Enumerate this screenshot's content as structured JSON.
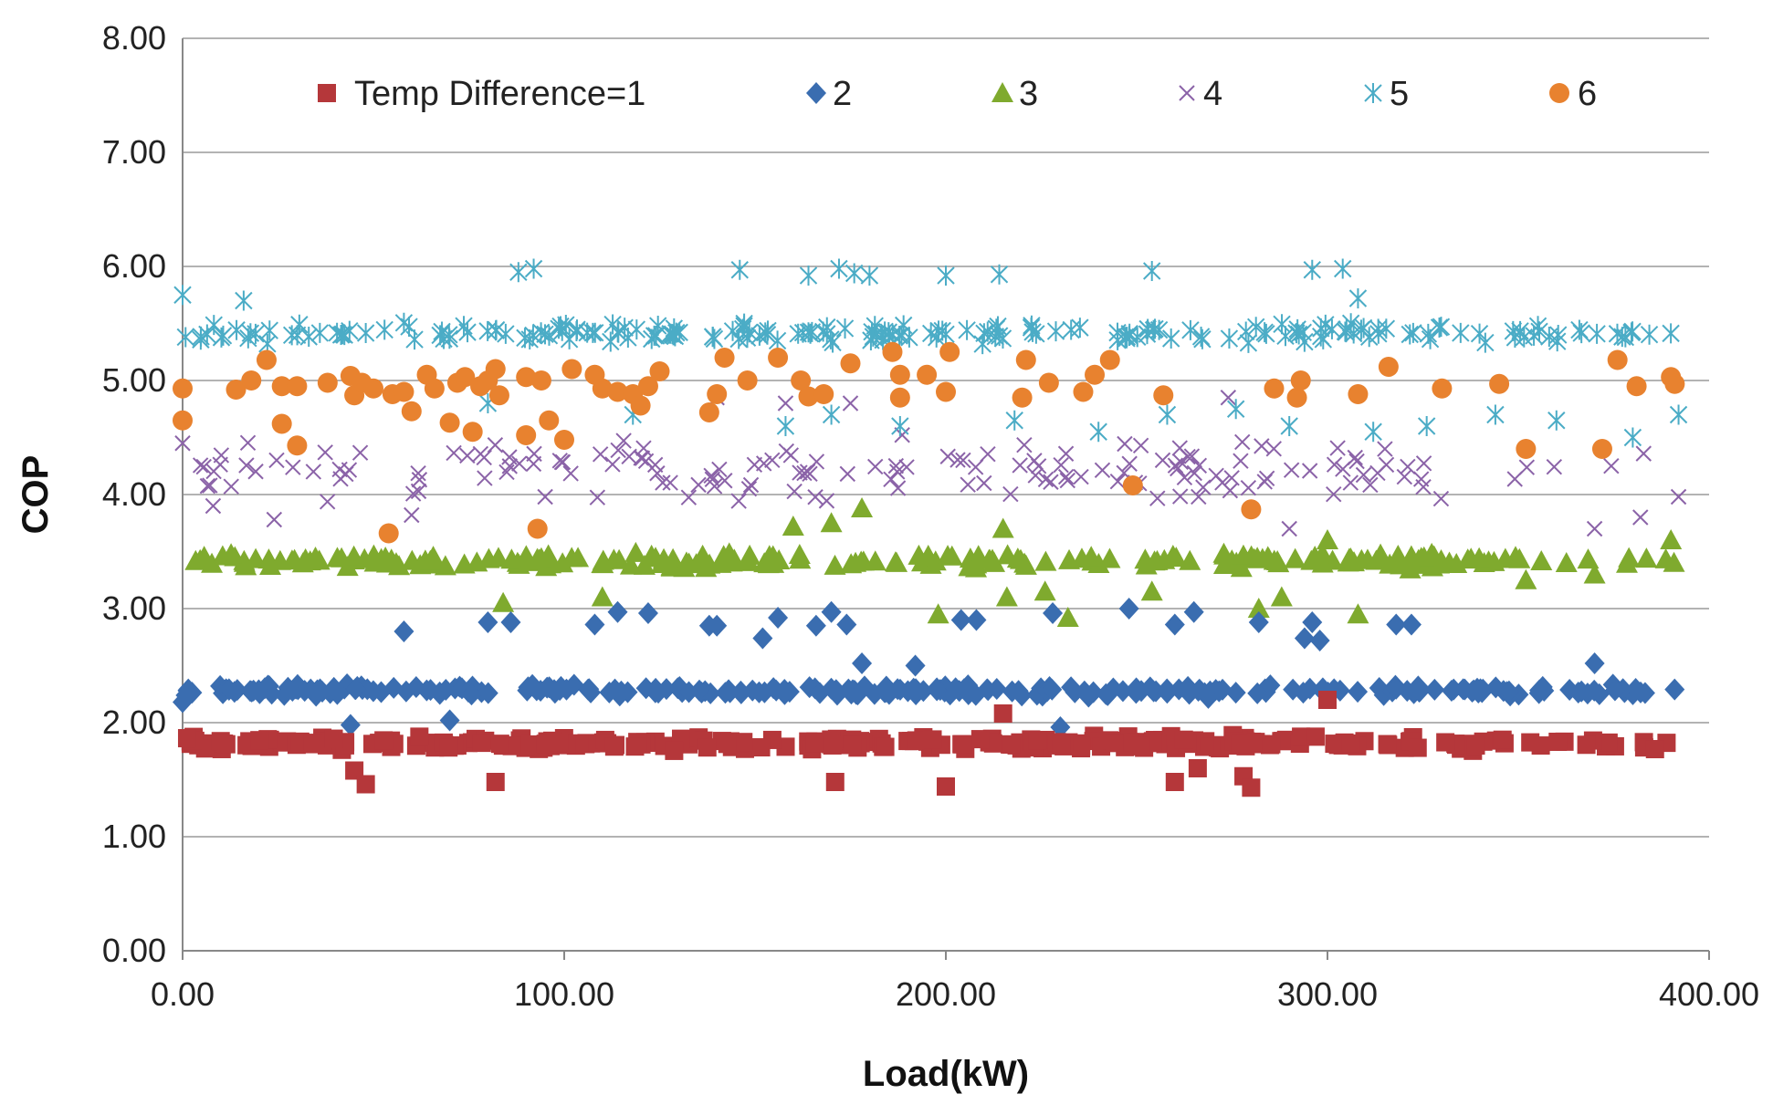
{
  "chart_data": {
    "type": "scatter",
    "title": "",
    "xlabel": "Load(kW)",
    "ylabel": "COP",
    "xlim": [
      0,
      400
    ],
    "ylim": [
      0,
      8
    ],
    "xticks": [
      0,
      100,
      200,
      300,
      400
    ],
    "yticks": [
      0,
      1,
      2,
      3,
      4,
      5,
      6,
      7,
      8
    ],
    "xtick_labels": [
      "0.00",
      "100.00",
      "200.00",
      "300.00",
      "400.00"
    ],
    "ytick_labels": [
      "0.00",
      "1.00",
      "2.00",
      "3.00",
      "4.00",
      "5.00",
      "6.00",
      "7.00",
      "8.00"
    ],
    "grid": "horizontal",
    "legend_position": "top",
    "series": [
      {
        "name": "Temp Difference=1",
        "marker": "square",
        "color": "#B5373A",
        "base": 1.82,
        "spread": 0.08,
        "count": 300,
        "outliers": [
          [
            45,
            1.58
          ],
          [
            48,
            1.46
          ],
          [
            82,
            1.48
          ],
          [
            171,
            1.48
          ],
          [
            200,
            1.44
          ],
          [
            260,
            1.48
          ],
          [
            278,
            1.53
          ],
          [
            280,
            1.43
          ],
          [
            266,
            1.6
          ],
          [
            300,
            2.2
          ],
          [
            215,
            2.08
          ]
        ]
      },
      {
        "name": "2",
        "marker": "diamond",
        "color": "#3A6DB0",
        "base": 2.28,
        "spread": 0.07,
        "count": 280,
        "outliers": [
          [
            58,
            2.8
          ],
          [
            80,
            2.88
          ],
          [
            86,
            2.88
          ],
          [
            108,
            2.86
          ],
          [
            114,
            2.97
          ],
          [
            122,
            2.96
          ],
          [
            138,
            2.85
          ],
          [
            140,
            2.85
          ],
          [
            152,
            2.74
          ],
          [
            156,
            2.92
          ],
          [
            166,
            2.85
          ],
          [
            170,
            2.97
          ],
          [
            174,
            2.86
          ],
          [
            178,
            2.52
          ],
          [
            192,
            2.5
          ],
          [
            204,
            2.9
          ],
          [
            208,
            2.9
          ],
          [
            228,
            2.96
          ],
          [
            248,
            3.0
          ],
          [
            260,
            2.86
          ],
          [
            265,
            2.97
          ],
          [
            282,
            2.88
          ],
          [
            294,
            2.74
          ],
          [
            296,
            2.88
          ],
          [
            298,
            2.72
          ],
          [
            318,
            2.86
          ],
          [
            322,
            2.86
          ],
          [
            370,
            2.52
          ],
          [
            230,
            1.96
          ],
          [
            44,
            1.98
          ],
          [
            70,
            2.02
          ],
          [
            0,
            2.18
          ]
        ]
      },
      {
        "name": "3",
        "marker": "triangle",
        "color": "#7FAA2E",
        "base": 3.42,
        "spread": 0.09,
        "count": 240,
        "outliers": [
          [
            84,
            3.05
          ],
          [
            110,
            3.1
          ],
          [
            160,
            3.72
          ],
          [
            170,
            3.75
          ],
          [
            178,
            3.88
          ],
          [
            198,
            2.95
          ],
          [
            215,
            3.7
          ],
          [
            216,
            3.1
          ],
          [
            226,
            3.15
          ],
          [
            232,
            2.92
          ],
          [
            254,
            3.15
          ],
          [
            282,
            3.0
          ],
          [
            288,
            3.1
          ],
          [
            300,
            3.6
          ],
          [
            308,
            2.95
          ],
          [
            352,
            3.25
          ],
          [
            370,
            3.3
          ],
          [
            390,
            3.6
          ]
        ]
      },
      {
        "name": "4",
        "marker": "x",
        "color": "#8B63A8",
        "base": 4.2,
        "spread": 0.35,
        "count": 170,
        "xfrom": 0,
        "xto": 392,
        "outliers": [
          [
            0,
            4.45
          ],
          [
            8,
            3.9
          ],
          [
            24,
            3.78
          ],
          [
            60,
            3.82
          ],
          [
            95,
            3.98
          ],
          [
            140,
            4.85
          ],
          [
            158,
            4.8
          ],
          [
            175,
            4.8
          ],
          [
            210,
            4.1
          ],
          [
            274,
            4.85
          ],
          [
            290,
            3.7
          ],
          [
            370,
            3.7
          ],
          [
            382,
            3.8
          ],
          [
            392,
            3.98
          ]
        ]
      },
      {
        "name": "5",
        "marker": "asterisk",
        "color": "#4BACC6",
        "base": 5.42,
        "spread": 0.12,
        "count": 230,
        "outliers": [
          [
            88,
            5.95
          ],
          [
            92,
            5.98
          ],
          [
            146,
            5.97
          ],
          [
            164,
            5.92
          ],
          [
            172,
            5.98
          ],
          [
            176,
            5.94
          ],
          [
            180,
            5.92
          ],
          [
            200,
            5.92
          ],
          [
            214,
            5.93
          ],
          [
            254,
            5.96
          ],
          [
            296,
            5.97
          ],
          [
            304,
            5.98
          ],
          [
            308,
            5.72
          ],
          [
            0,
            5.75
          ],
          [
            16,
            5.7
          ],
          [
            80,
            4.8
          ],
          [
            118,
            4.7
          ],
          [
            158,
            4.6
          ],
          [
            170,
            4.7
          ],
          [
            188,
            4.6
          ],
          [
            218,
            4.65
          ],
          [
            240,
            4.55
          ],
          [
            258,
            4.7
          ],
          [
            276,
            4.75
          ],
          [
            290,
            4.6
          ],
          [
            312,
            4.55
          ],
          [
            326,
            4.6
          ],
          [
            344,
            4.7
          ],
          [
            360,
            4.65
          ],
          [
            380,
            4.5
          ],
          [
            392,
            4.7
          ]
        ]
      },
      {
        "name": "6",
        "marker": "circle",
        "color": "#E8822F",
        "points": [
          [
            0,
            4.93
          ],
          [
            0,
            4.65
          ],
          [
            14,
            4.92
          ],
          [
            18,
            5.0
          ],
          [
            22,
            5.18
          ],
          [
            26,
            4.62
          ],
          [
            26,
            4.95
          ],
          [
            30,
            4.95
          ],
          [
            30,
            4.43
          ],
          [
            38,
            4.98
          ],
          [
            44,
            5.04
          ],
          [
            45,
            4.87
          ],
          [
            47,
            4.98
          ],
          [
            50,
            4.93
          ],
          [
            54,
            3.66
          ],
          [
            55,
            4.88
          ],
          [
            58,
            4.9
          ],
          [
            60,
            4.73
          ],
          [
            64,
            5.05
          ],
          [
            66,
            4.93
          ],
          [
            70,
            4.63
          ],
          [
            72,
            4.98
          ],
          [
            74,
            5.03
          ],
          [
            76,
            4.55
          ],
          [
            78,
            4.95
          ],
          [
            80,
            5.0
          ],
          [
            82,
            5.1
          ],
          [
            83,
            4.87
          ],
          [
            90,
            5.03
          ],
          [
            90,
            4.52
          ],
          [
            93,
            3.7
          ],
          [
            94,
            5.0
          ],
          [
            96,
            4.65
          ],
          [
            100,
            4.48
          ],
          [
            102,
            5.1
          ],
          [
            108,
            5.05
          ],
          [
            110,
            4.93
          ],
          [
            114,
            4.9
          ],
          [
            118,
            4.88
          ],
          [
            120,
            4.78
          ],
          [
            122,
            4.95
          ],
          [
            125,
            5.08
          ],
          [
            138,
            4.72
          ],
          [
            140,
            4.88
          ],
          [
            142,
            5.2
          ],
          [
            148,
            5.0
          ],
          [
            156,
            5.2
          ],
          [
            162,
            5.0
          ],
          [
            164,
            4.86
          ],
          [
            168,
            4.88
          ],
          [
            175,
            5.15
          ],
          [
            186,
            5.25
          ],
          [
            188,
            5.05
          ],
          [
            188,
            4.85
          ],
          [
            195,
            5.05
          ],
          [
            200,
            4.9
          ],
          [
            201,
            5.25
          ],
          [
            220,
            4.85
          ],
          [
            221,
            5.18
          ],
          [
            227,
            4.98
          ],
          [
            236,
            4.9
          ],
          [
            239,
            5.05
          ],
          [
            243,
            5.18
          ],
          [
            249,
            4.08
          ],
          [
            257,
            4.87
          ],
          [
            280,
            3.87
          ],
          [
            286,
            4.93
          ],
          [
            292,
            4.85
          ],
          [
            293,
            5.0
          ],
          [
            308,
            4.88
          ],
          [
            316,
            5.12
          ],
          [
            330,
            4.93
          ],
          [
            345,
            4.97
          ],
          [
            352,
            4.4
          ],
          [
            372,
            4.4
          ],
          [
            376,
            5.18
          ],
          [
            381,
            4.95
          ],
          [
            390,
            5.03
          ],
          [
            391,
            4.97
          ]
        ]
      }
    ]
  }
}
